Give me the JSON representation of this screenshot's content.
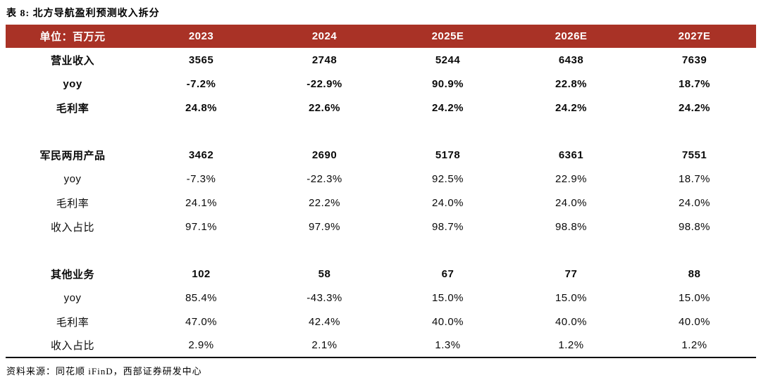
{
  "title": "表 8: 北方导航盈利预测收入拆分",
  "source_note": "资料来源：同花顺 iFinD，西部证券研发中心",
  "colors": {
    "header_bg": "#A93226",
    "header_text": "#FFFFFF"
  },
  "table": {
    "unit_label": "单位：百万元",
    "year_columns": [
      "2023",
      "2024",
      "2025E",
      "2026E",
      "2027E"
    ],
    "rows": [
      {
        "label": "营业收入",
        "values": [
          "3565",
          "2748",
          "5244",
          "6438",
          "7639"
        ],
        "style": "bold"
      },
      {
        "label": "yoy",
        "values": [
          "-7.2%",
          "-22.9%",
          "90.9%",
          "22.8%",
          "18.7%"
        ],
        "style": "bold"
      },
      {
        "label": "毛利率",
        "values": [
          "24.8%",
          "22.6%",
          "24.2%",
          "24.2%",
          "24.2%"
        ],
        "style": "bold"
      },
      {
        "label": "",
        "values": [
          "",
          "",
          "",
          "",
          ""
        ],
        "style": "spacer"
      },
      {
        "label": "军民两用产品",
        "values": [
          "3462",
          "2690",
          "5178",
          "6361",
          "7551"
        ],
        "style": "bold"
      },
      {
        "label": "yoy",
        "values": [
          "-7.3%",
          "-22.3%",
          "92.5%",
          "22.9%",
          "18.7%"
        ],
        "style": "regular"
      },
      {
        "label": "毛利率",
        "values": [
          "24.1%",
          "22.2%",
          "24.0%",
          "24.0%",
          "24.0%"
        ],
        "style": "regular"
      },
      {
        "label": "收入占比",
        "values": [
          "97.1%",
          "97.9%",
          "98.7%",
          "98.8%",
          "98.8%"
        ],
        "style": "regular"
      },
      {
        "label": "",
        "values": [
          "",
          "",
          "",
          "",
          ""
        ],
        "style": "spacer"
      },
      {
        "label": "其他业务",
        "values": [
          "102",
          "58",
          "67",
          "77",
          "88"
        ],
        "style": "bold"
      },
      {
        "label": "yoy",
        "values": [
          "85.4%",
          "-43.3%",
          "15.0%",
          "15.0%",
          "15.0%"
        ],
        "style": "regular"
      },
      {
        "label": "毛利率",
        "values": [
          "47.0%",
          "42.4%",
          "40.0%",
          "40.0%",
          "40.0%"
        ],
        "style": "regular"
      },
      {
        "label": "收入占比",
        "values": [
          "2.9%",
          "2.1%",
          "1.3%",
          "1.2%",
          "1.2%"
        ],
        "style": "regular"
      }
    ]
  }
}
